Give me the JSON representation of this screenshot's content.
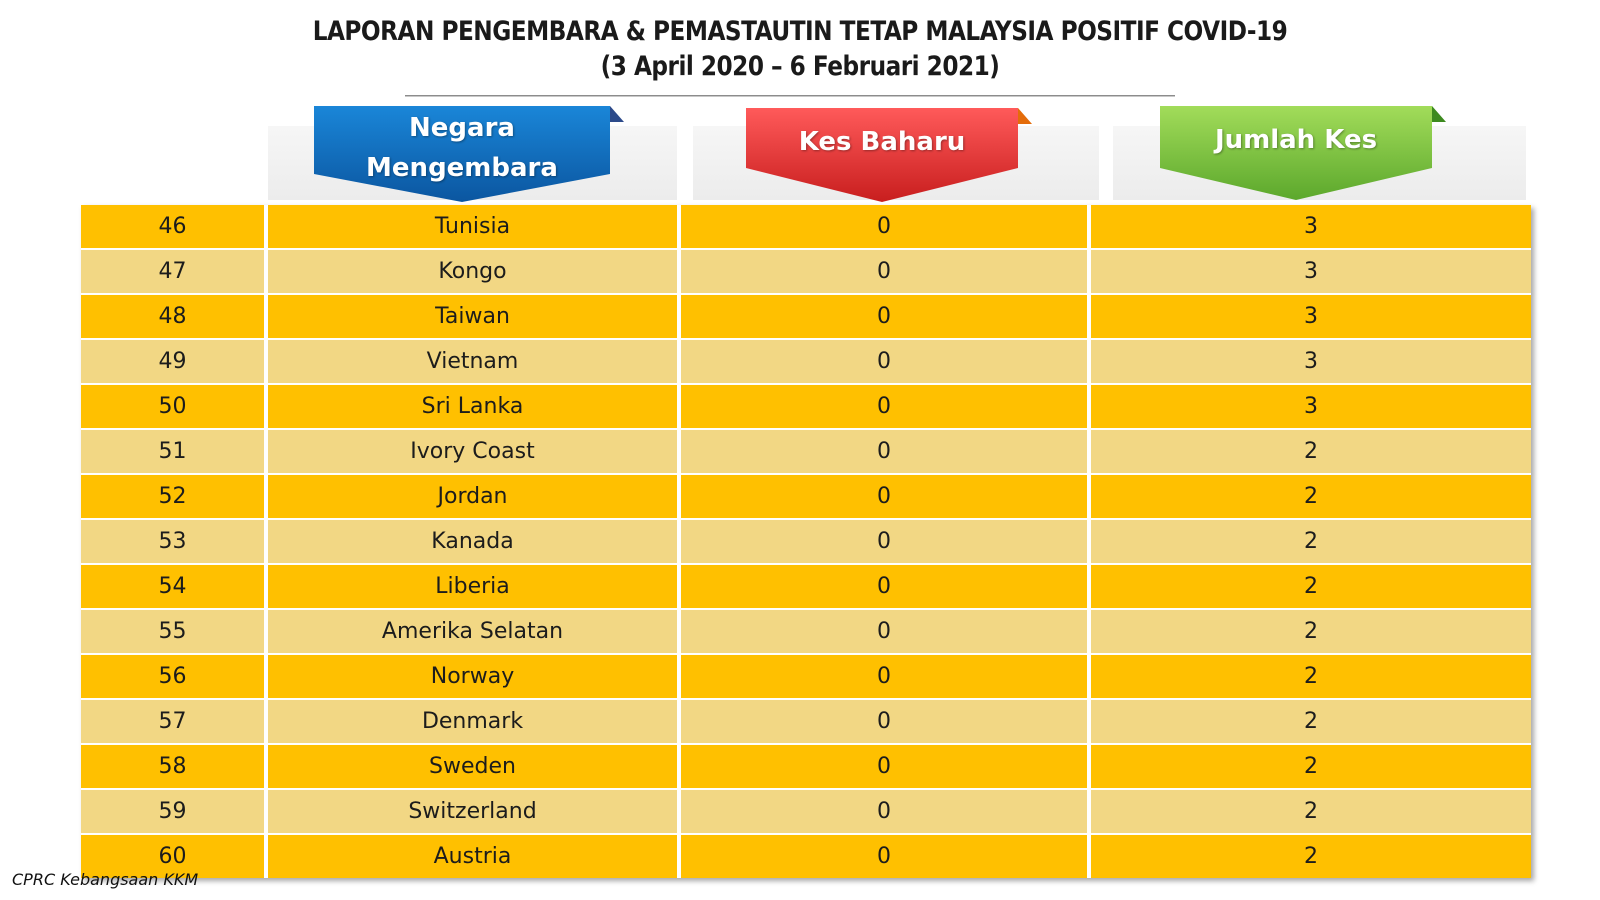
{
  "title": {
    "line1": "LAPORAN PENGEMBARA & PEMASTAUTIN TETAP MALAYSIA POSITIF COVID-19",
    "line2": "(3 April 2020 – 6 Februari 2021)"
  },
  "headers": {
    "country": [
      "Negara",
      "Mengembara"
    ],
    "new_cases": "Kes Baharu",
    "total_cases": "Jumlah Kes"
  },
  "colors": {
    "row_dark": "#ffc000",
    "row_light": "#f2d784",
    "country_banner": "#0a6cc2",
    "new_cases_banner": "#e52b2b",
    "total_cases_banner": "#7ac943"
  },
  "rows": [
    {
      "no": "46",
      "country": "Tunisia",
      "new": "0",
      "total": "3"
    },
    {
      "no": "47",
      "country": "Kongo",
      "new": "0",
      "total": "3"
    },
    {
      "no": "48",
      "country": "Taiwan",
      "new": "0",
      "total": "3"
    },
    {
      "no": "49",
      "country": "Vietnam",
      "new": "0",
      "total": "3"
    },
    {
      "no": "50",
      "country": "Sri Lanka",
      "new": "0",
      "total": "3"
    },
    {
      "no": "51",
      "country": "Ivory Coast",
      "new": "0",
      "total": "2"
    },
    {
      "no": "52",
      "country": "Jordan",
      "new": "0",
      "total": "2"
    },
    {
      "no": "53",
      "country": "Kanada",
      "new": "0",
      "total": "2"
    },
    {
      "no": "54",
      "country": "Liberia",
      "new": "0",
      "total": "2"
    },
    {
      "no": "55",
      "country": "Amerika Selatan",
      "new": "0",
      "total": "2"
    },
    {
      "no": "56",
      "country": "Norway",
      "new": "0",
      "total": "2"
    },
    {
      "no": "57",
      "country": "Denmark",
      "new": "0",
      "total": "2"
    },
    {
      "no": "58",
      "country": "Sweden",
      "new": "0",
      "total": "2"
    },
    {
      "no": "59",
      "country": "Switzerland",
      "new": "0",
      "total": "2"
    },
    {
      "no": "60",
      "country": "Austria",
      "new": "0",
      "total": "2"
    }
  ],
  "footer": "CPRC Kebangsaan KKM"
}
